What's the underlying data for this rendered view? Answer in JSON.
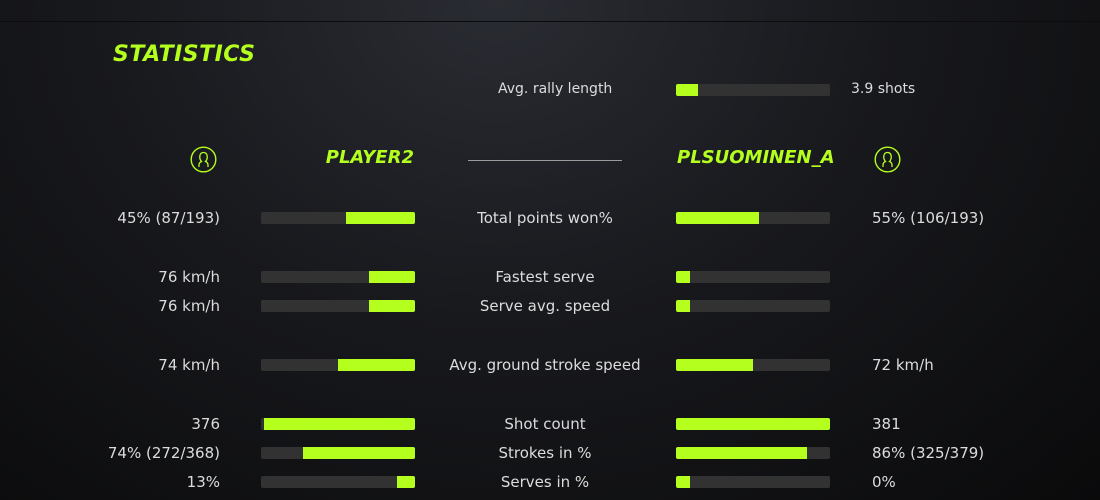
{
  "title": "STATISTICS",
  "accent": "#b4ff1e",
  "rally": {
    "label": "Avg. rally length",
    "value": "3.9 shots",
    "fill": 0.14
  },
  "players": {
    "left": {
      "name": "PLAYER2",
      "icon": "user-circle-icon"
    },
    "right": {
      "name": "PLSUOMINEN_A",
      "icon": "user-circle-icon"
    }
  },
  "stats": [
    {
      "label": "Total points won%",
      "left": "45% (87/193)",
      "right": "55% (106/193)",
      "left_fill": 0.45,
      "right_fill": 0.54
    },
    {
      "label": "Fastest serve",
      "left": "76 km/h",
      "right": "",
      "left_fill": 0.3,
      "right_fill": 0.09
    },
    {
      "label": "Serve avg. speed",
      "left": "76 km/h",
      "right": "",
      "left_fill": 0.3,
      "right_fill": 0.09
    },
    {
      "label": "Avg. ground stroke speed",
      "left": "74 km/h",
      "right": "72 km/h",
      "left_fill": 0.5,
      "right_fill": 0.5
    },
    {
      "label": "Shot count",
      "left": "376",
      "right": "381",
      "left_fill": 0.98,
      "right_fill": 1.0
    },
    {
      "label": "Strokes in %",
      "left": "74% (272/368)",
      "right": "86% (325/379)",
      "left_fill": 0.73,
      "right_fill": 0.85
    },
    {
      "label": "Serves in %",
      "left": "13%",
      "right": "0%",
      "left_fill": 0.12,
      "right_fill": 0.09
    }
  ]
}
